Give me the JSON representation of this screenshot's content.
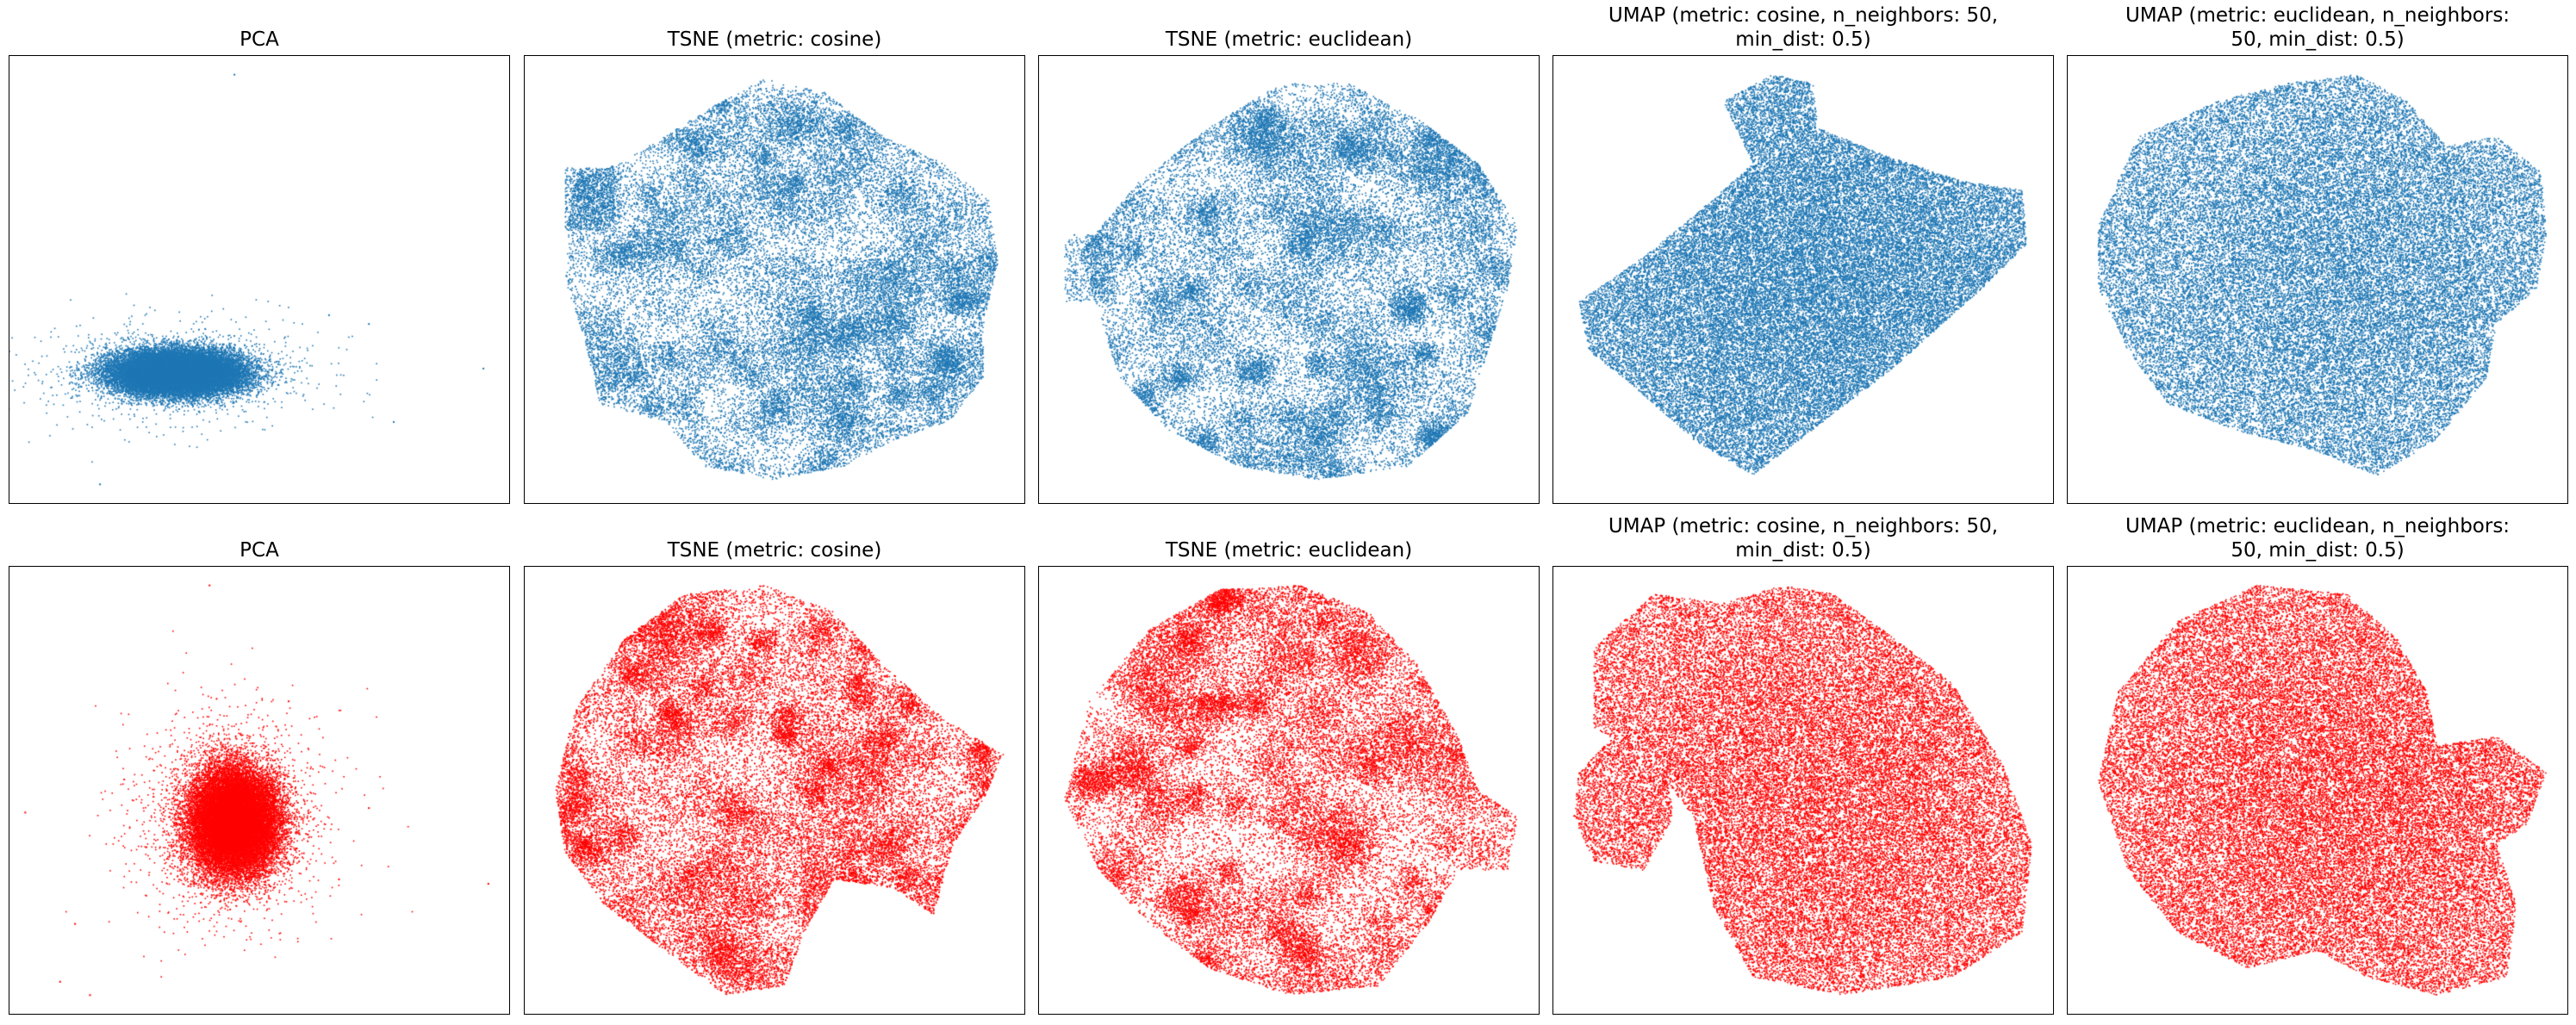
{
  "figure": {
    "colors": {
      "row_1": "#1f77b4",
      "row_2": "#ff0000"
    }
  },
  "chart_data": [
    {
      "type": "scatter",
      "row": 1,
      "column": 1,
      "title": "PCA",
      "color": "#1f77b4",
      "axes_visible": false,
      "grid": false,
      "description": "Dense elongated cluster in the lower-left with sparse outliers to the right and one isolated point near the top"
    },
    {
      "type": "scatter",
      "row": 1,
      "column": 2,
      "title": "TSNE (metric: cosine)",
      "color": "#1f77b4",
      "axes_visible": false,
      "grid": false,
      "description": "Roughly circular blob with many small sub-clusters and a detached group on the left"
    },
    {
      "type": "scatter",
      "row": 1,
      "column": 3,
      "title": "TSNE (metric: euclidean)",
      "color": "#1f77b4",
      "axes_visible": false,
      "grid": false,
      "description": "Roughly circular blob with small sub-clusters and fragmented left edge"
    },
    {
      "type": "scatter",
      "row": 1,
      "column": 4,
      "title": "UMAP (metric: cosine, n_neighbors: 50,\nmin_dist: 0.5)",
      "color": "#1f77b4",
      "axes_visible": false,
      "grid": false,
      "description": "Large continuous fan-shaped manifold with a lobe extending upward"
    },
    {
      "type": "scatter",
      "row": 1,
      "column": 5,
      "title": "UMAP (metric: euclidean, n_neighbors:\n50, min_dist: 0.5)",
      "color": "#1f77b4",
      "axes_visible": false,
      "grid": false,
      "description": "Large continuous rounded manifold with a bulge on the right"
    },
    {
      "type": "scatter",
      "row": 2,
      "column": 1,
      "title": "PCA",
      "color": "#ff0000",
      "axes_visible": false,
      "grid": false,
      "description": "Dense compact round cluster with a sparse halo of outliers"
    },
    {
      "type": "scatter",
      "row": 2,
      "column": 2,
      "title": "TSNE (metric: cosine)",
      "color": "#ff0000",
      "axes_visible": false,
      "grid": false,
      "description": "Roughly circular blob with many small sub-clusters and protrusions to the right and bottom"
    },
    {
      "type": "scatter",
      "row": 2,
      "column": 3,
      "title": "TSNE (metric: euclidean)",
      "color": "#ff0000",
      "axes_visible": false,
      "grid": false,
      "description": "Roughly circular blob with many small sub-clusters and a protrusion to the lower right"
    },
    {
      "type": "scatter",
      "row": 2,
      "column": 4,
      "title": "UMAP (metric: cosine, n_neighbors: 50,\nmin_dist: 0.5)",
      "color": "#ff0000",
      "axes_visible": false,
      "grid": false,
      "description": "Large manifold with a separate small lobe on the left and a broad body on the right"
    },
    {
      "type": "scatter",
      "row": 2,
      "column": 5,
      "title": "UMAP (metric: euclidean, n_neighbors:\n50, min_dist: 0.5)",
      "color": "#ff0000",
      "axes_visible": false,
      "grid": false,
      "description": "Large rounded manifold with lobes on the right and bottom"
    }
  ]
}
